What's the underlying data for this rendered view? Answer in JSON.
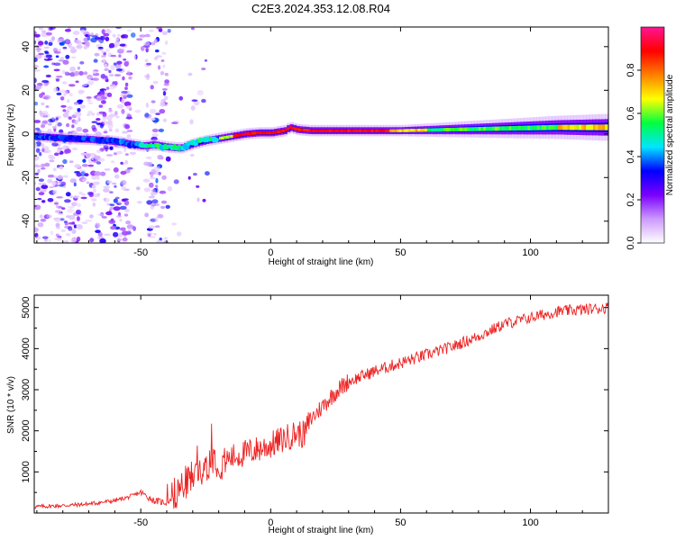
{
  "figure": {
    "title": "C2E3.2024.353.12.08.R04"
  },
  "chart_data": [
    {
      "type": "heatmap",
      "xlabel": "Height of straight line (km)",
      "ylabel": "Frequency (Hz)",
      "xlim": [
        -91,
        130
      ],
      "ylim": [
        -50,
        49
      ],
      "xticks": [
        -50,
        0,
        50,
        100
      ],
      "yticks": [
        -40,
        -20,
        0,
        20,
        40
      ],
      "ridge": {
        "x": [
          -91,
          -80,
          -70,
          -60,
          -55,
          -50,
          -45,
          -40,
          -35,
          -30,
          -25,
          -20,
          -15,
          -10,
          -5,
          0,
          5,
          7,
          10,
          15,
          20,
          30,
          50,
          70,
          90,
          110,
          130
        ],
        "y": [
          -1,
          -2,
          -2.5,
          -3.5,
          -4.5,
          -5.5,
          -5,
          -6,
          -6.5,
          -4.5,
          -3,
          -2,
          -1,
          0,
          0.5,
          0.5,
          1.5,
          3,
          2,
          1.5,
          1.5,
          1.5,
          1.5,
          2,
          2.5,
          3,
          3
        ]
      },
      "colorbar": {
        "label": "Normalized spectral amplitude",
        "range": [
          0,
          1
        ],
        "ticks": [
          "0.0",
          "0.2",
          "0.4",
          "0.6",
          "0.8"
        ],
        "tick_values": [
          0,
          0.2,
          0.4,
          0.6,
          0.8
        ],
        "colors": [
          "#ffffff",
          "#cc99ff",
          "#7a00ff",
          "#0000ff",
          "#00e5ff",
          "#00ff40",
          "#ffff00",
          "#ff8000",
          "#ff0000",
          "#ff1493"
        ]
      }
    },
    {
      "type": "line",
      "xlabel": "Height of straight line (km)",
      "ylabel": "SNR (10 * v/v)",
      "xlim": [
        -91,
        130
      ],
      "ylim": [
        0,
        5300
      ],
      "xticks": [
        -50,
        0,
        50,
        100
      ],
      "yticks": [
        1000,
        2000,
        3000,
        4000,
        5000
      ],
      "color": "#ee2222",
      "series": [
        {
          "x": [
            -91,
            -80,
            -70,
            -60,
            -55,
            -50,
            -45,
            -40,
            -35,
            -30,
            -25,
            -22,
            -20,
            -15,
            -10,
            -5,
            0,
            5,
            10,
            13,
            15,
            20,
            25,
            30,
            40,
            50,
            60,
            70,
            80,
            90,
            100,
            110,
            120,
            130
          ],
          "values": [
            150,
            180,
            220,
            300,
            380,
            500,
            300,
            250,
            600,
            900,
            1150,
            1400,
            1200,
            1350,
            1450,
            1550,
            1650,
            1800,
            1950,
            1900,
            2250,
            2600,
            2950,
            3200,
            3450,
            3650,
            3850,
            4050,
            4300,
            4600,
            4750,
            4900,
            4950,
            5000
          ]
        }
      ]
    }
  ]
}
